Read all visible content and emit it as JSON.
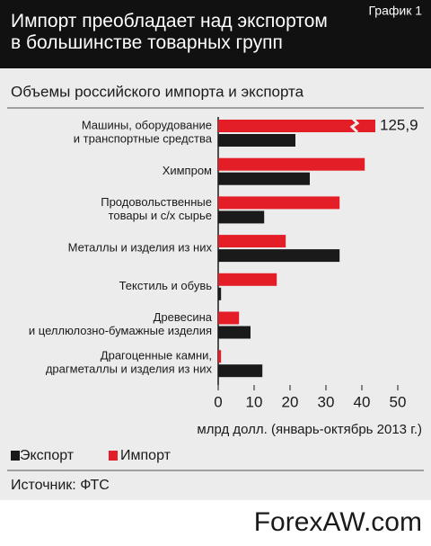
{
  "chart_data": {
    "type": "bar",
    "orientation": "horizontal",
    "title": "Импорт преобладает над экспортом\nв большинстве товарных групп",
    "chart_number": "График 1",
    "subtitle": "Объемы российского импорта и экспорта",
    "categories": [
      "Машины, оборудование\nи транспортные средства",
      "Химпром",
      "Продовольственные\nтовары и с/х сырье",
      "Металлы и изделия из них",
      "Текстиль и обувь",
      "Древесина\nи целлюлозно-бумажные изделия",
      "Драгоценные камни,\nдрагметаллы и изделия из них"
    ],
    "series": [
      {
        "name": "Экспорт",
        "color": "#1a1a1a",
        "values": [
          21.5,
          25.5,
          12.8,
          33.8,
          0.8,
          9,
          12.3
        ]
      },
      {
        "name": "Импорт",
        "color": "#e41e26",
        "values": [
          125.9,
          40.8,
          33.8,
          18.8,
          16.3,
          5.8,
          0.8
        ],
        "value_labels": [
          "125,9",
          null,
          null,
          null,
          null,
          null,
          null
        ]
      }
    ],
    "xlim": [
      0,
      50
    ],
    "xticks": [
      0,
      10,
      20,
      30,
      40,
      50
    ],
    "xlabel": "млрд долл. (январь-октябрь 2013 г.)",
    "source": "Источник: ФТС",
    "watermark": "ForexAW.com",
    "grid": false
  }
}
